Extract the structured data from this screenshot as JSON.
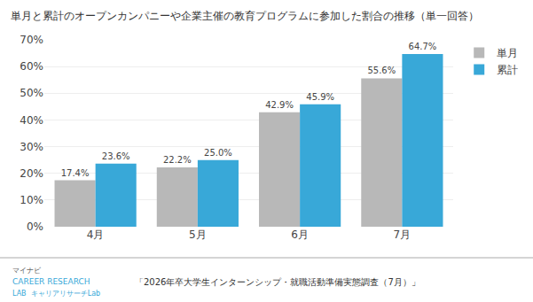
{
  "chart_data": {
    "type": "bar",
    "title": "単月と累計のオープンカンパニーや企業主催の教育プログラムに参加した割合の推移（単一回答）",
    "categories": [
      "4月",
      "5月",
      "6月",
      "7月"
    ],
    "series": [
      {
        "name": "単月",
        "color": "#b8b8b8",
        "values": [
          17.4,
          22.2,
          42.9,
          55.6
        ],
        "value_labels": [
          "17.4%",
          "22.2%",
          "42.9%",
          "55.6%"
        ]
      },
      {
        "name": "累計",
        "color": "#38a8d8",
        "values": [
          23.6,
          25.0,
          45.9,
          64.7
        ],
        "value_labels": [
          "23.6%",
          "25.0%",
          "45.9%",
          "64.7%"
        ]
      }
    ],
    "ylim": [
      0,
      70
    ],
    "yticks": [
      {
        "value": 0,
        "label": "0%"
      },
      {
        "value": 10,
        "label": "10%"
      },
      {
        "value": 20,
        "label": "20%"
      },
      {
        "value": 30,
        "label": "30%"
      },
      {
        "value": 40,
        "label": "40%"
      },
      {
        "value": 50,
        "label": "50%"
      },
      {
        "value": 60,
        "label": "60%"
      },
      {
        "value": 70,
        "label": "70%"
      }
    ],
    "grid": true,
    "legend": "upper right",
    "data_labels": true,
    "annotations": [
      "マイナビ",
      "CAREER RESEARCH",
      "LAB  キャリアリサーチLab",
      "「2026年卒大学生インターンシップ・就職活動準備実態調査（7月）」"
    ]
  }
}
